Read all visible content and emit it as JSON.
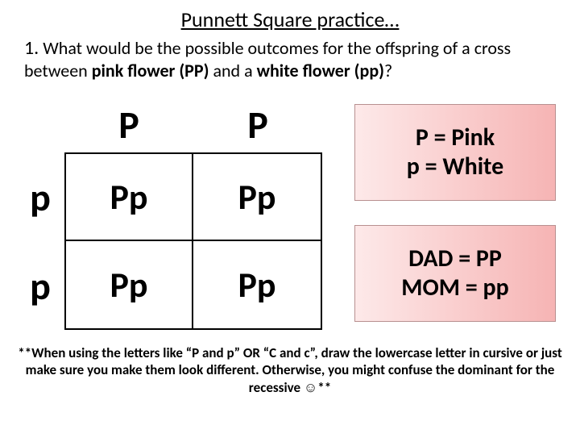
{
  "title": "Punnett Square practice…",
  "question": {
    "number": "1.",
    "text_before": " What would be the possible outcomes for the offspring of a cross between ",
    "bold1": "pink flower (PP)",
    "mid": " and a ",
    "bold2": "white flower (pp)",
    "after": "?"
  },
  "punnett": {
    "col1": "P",
    "col2": "P",
    "row1": "p",
    "row2": "p",
    "c11": "Pp",
    "c12": "Pp",
    "c21": "Pp",
    "c22": "Pp"
  },
  "legend": {
    "box1_line1": "P = Pink",
    "box1_line2": "p = White",
    "box2_line1": "DAD = PP",
    "box2_line2": "MOM = pp"
  },
  "footnote": "**When using the letters like “P and p” OR “C and c”, draw the lowercase letter in cursive or just make sure you make them look different.  Otherwise, you might confuse the dominant for the recessive ☺**",
  "colors": {
    "legend_grad_start": "#fde9e9",
    "legend_grad_end": "#f6b4b4",
    "text": "#000000",
    "bg": "#ffffff"
  }
}
